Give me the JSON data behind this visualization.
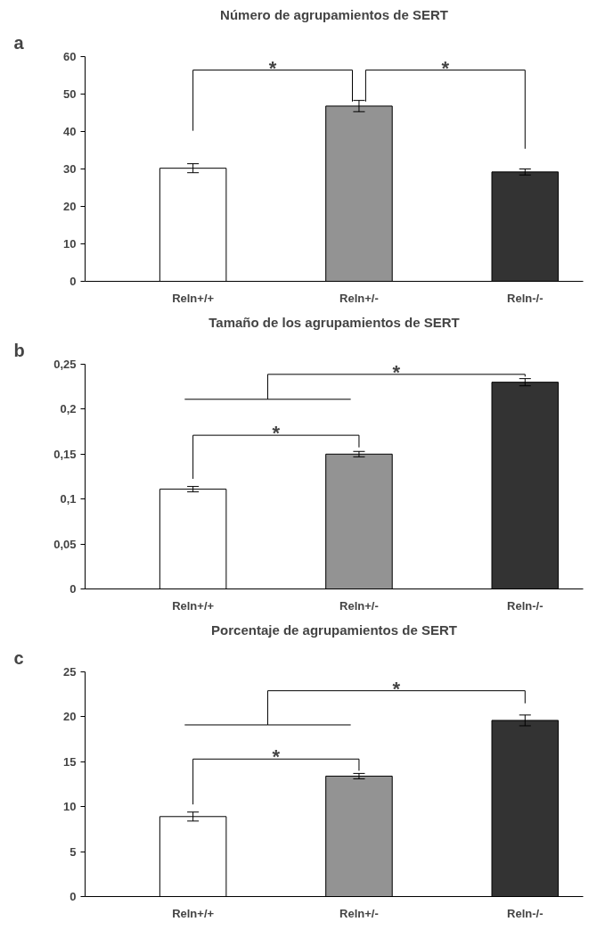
{
  "chart_data": [
    {
      "type": "bar",
      "title": "Número de agrupamientos de SERT",
      "categories": [
        "Reln+/+",
        "Reln+/-",
        "Reln-/-"
      ],
      "values": [
        30.2,
        46.8,
        29.2
      ],
      "errors": [
        1.2,
        1.5,
        0.8
      ],
      "colors": [
        "#ffffff",
        "#939393",
        "#333333"
      ],
      "ylim": [
        0,
        60
      ],
      "yticks": [
        0,
        10,
        20,
        30,
        40,
        50,
        60
      ],
      "grid": false,
      "annotations": [
        "a",
        "*",
        "*"
      ]
    },
    {
      "type": "bar",
      "title": "Tamaño de los agrupamientos de SERT",
      "categories": [
        "Reln+/+",
        "Reln+/-",
        "Reln-/-"
      ],
      "values": [
        0.111,
        0.15,
        0.23
      ],
      "errors": [
        0.003,
        0.003,
        0.004
      ],
      "colors": [
        "#ffffff",
        "#939393",
        "#333333"
      ],
      "ylim": [
        0,
        0.25
      ],
      "yticks": [
        0,
        {
          "value": 0.05,
          "label": "0,05"
        },
        {
          "value": 0.1,
          "label": "0,1"
        },
        {
          "value": 0.15,
          "label": "0,15"
        },
        {
          "value": 0.2,
          "label": "0,2"
        },
        {
          "value": 0.25,
          "label": "0,25"
        }
      ],
      "grid": false,
      "annotations": [
        "b",
        "*",
        "*"
      ]
    },
    {
      "type": "bar",
      "title": "Porcentaje de agrupamientos de SERT",
      "categories": [
        "Reln+/+",
        "Reln+/-",
        "Reln-/-"
      ],
      "values": [
        8.9,
        13.4,
        19.6
      ],
      "errors": [
        0.5,
        0.3,
        0.6
      ],
      "colors": [
        "#ffffff",
        "#939393",
        "#333333"
      ],
      "ylim": [
        0,
        25
      ],
      "yticks": [
        0,
        5,
        10,
        15,
        20,
        25
      ],
      "grid": false,
      "annotations": [
        "c",
        "*",
        "*"
      ]
    }
  ]
}
